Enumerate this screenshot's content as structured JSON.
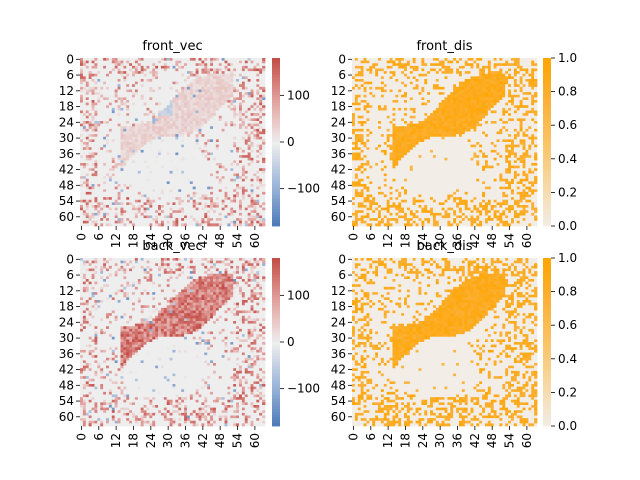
{
  "figure": {
    "background": "#ffffff"
  },
  "colormaps": {
    "diverging": [
      "#4a78b8",
      "#9db6d8",
      "#eeeeee",
      "#e2a3a0",
      "#c44e48"
    ],
    "sequential": [
      "#f2ede7",
      "#f6d9a6",
      "#f9c466",
      "#fbb13a",
      "#ffa500"
    ]
  },
  "chart_data": [
    {
      "type": "heatmap",
      "title": "front_vec",
      "grid_size": 64,
      "xticks": [
        "0",
        "6",
        "12",
        "18",
        "24",
        "30",
        "36",
        "42",
        "48",
        "54",
        "60"
      ],
      "yticks": [
        "0",
        "6",
        "12",
        "18",
        "24",
        "30",
        "36",
        "42",
        "48",
        "54",
        "60"
      ],
      "colorbar": {
        "ticks": [
          "100",
          "0",
          "−100"
        ],
        "tick_values": [
          100,
          0,
          -100
        ],
        "range": [
          -180,
          180
        ],
        "cmap": "diverging"
      },
      "pattern": "vec_front"
    },
    {
      "type": "heatmap",
      "title": "front_dis",
      "grid_size": 64,
      "xticks": [
        "0",
        "6",
        "12",
        "18",
        "24",
        "30",
        "36",
        "42",
        "48",
        "54",
        "60"
      ],
      "yticks": [
        "0",
        "6",
        "12",
        "18",
        "24",
        "30",
        "36",
        "42",
        "48",
        "54",
        "60"
      ],
      "colorbar": {
        "ticks": [
          "1.0",
          "0.8",
          "0.6",
          "0.4",
          "0.2",
          "0.0"
        ],
        "tick_values": [
          1.0,
          0.8,
          0.6,
          0.4,
          0.2,
          0.0
        ],
        "range": [
          0,
          1
        ],
        "cmap": "sequential"
      },
      "pattern": "dis_front"
    },
    {
      "type": "heatmap",
      "title": "back_vec",
      "grid_size": 64,
      "xticks": [
        "0",
        "6",
        "12",
        "18",
        "24",
        "30",
        "36",
        "42",
        "48",
        "54",
        "60"
      ],
      "yticks": [
        "0",
        "6",
        "12",
        "18",
        "24",
        "30",
        "36",
        "42",
        "48",
        "54",
        "60"
      ],
      "colorbar": {
        "ticks": [
          "100",
          "0",
          "−100"
        ],
        "tick_values": [
          100,
          0,
          -100
        ],
        "range": [
          -180,
          180
        ],
        "cmap": "diverging"
      },
      "pattern": "vec_back"
    },
    {
      "type": "heatmap",
      "title": "back_dis",
      "grid_size": 64,
      "xticks": [
        "0",
        "6",
        "12",
        "18",
        "24",
        "30",
        "36",
        "42",
        "48",
        "54",
        "60"
      ],
      "yticks": [
        "0",
        "6",
        "12",
        "18",
        "24",
        "30",
        "36",
        "42",
        "48",
        "54",
        "60"
      ],
      "colorbar": {
        "ticks": [
          "1.0",
          "0.8",
          "0.6",
          "0.4",
          "0.2",
          "0.0"
        ],
        "tick_values": [
          1.0,
          0.8,
          0.6,
          0.4,
          0.2,
          0.0
        ],
        "range": [
          0,
          1
        ],
        "cmap": "sequential"
      },
      "pattern": "dis_back"
    }
  ]
}
